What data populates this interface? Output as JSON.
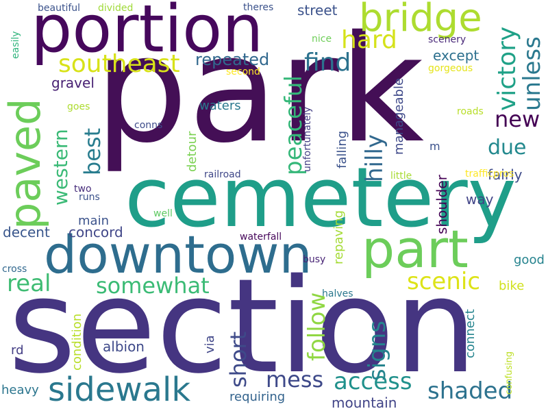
{
  "words": [
    "park",
    "section",
    "cemetery",
    "portion",
    "downtown",
    "part",
    "bridge",
    "sidewalk",
    "southeast",
    "hard",
    "find",
    "somewhat",
    "scenic",
    "real",
    "access",
    "mess",
    "shaded",
    "new",
    "due",
    "repeated",
    "street",
    "except",
    "gravel",
    "waters",
    "main",
    "decent",
    "concord",
    "fairly",
    "way",
    "good",
    "bike",
    "albion",
    "rd",
    "heavy",
    "requiring",
    "mountain",
    "busy",
    "halves",
    "waterfall",
    "railroad",
    "well",
    "two",
    "runs",
    "little",
    "trafficpros",
    "roads",
    "conns",
    "goes",
    "gorgeous",
    "second",
    "nice",
    "scenery",
    "beautiful",
    "divided",
    "theres",
    "m",
    "cross",
    "paved",
    "victory",
    "unless",
    "peaceful",
    "best",
    "western",
    "hilly",
    "falling",
    "manageable",
    "unfortunately",
    "detour",
    "shoulder",
    "repaving",
    "follow",
    "signs",
    "short",
    "via",
    "condition",
    "connect",
    "confusing",
    "easily"
  ]
}
